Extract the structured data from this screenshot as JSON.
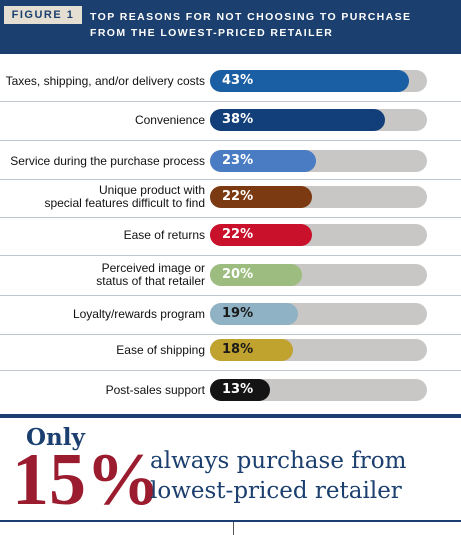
{
  "header": {
    "figure_label": "FIGURE 1",
    "title_line1": "TOP REASONS FOR NOT CHOOSING TO PURCHASE",
    "title_line2": "FROM THE LOWEST-PRICED RETAILER"
  },
  "chart_data": {
    "type": "bar",
    "title": "TOP REASONS FOR NOT CHOOSING TO PURCHASE FROM THE LOWEST-PRICED RETAILER",
    "categories": [
      "Taxes, shipping, and/or delivery costs",
      "Convenience",
      "Service during the purchase process",
      "Unique product with special features difficult to find",
      "Ease of returns",
      "Perceived image or status of that retailer",
      "Loyalty/rewards program",
      "Ease of shipping",
      "Post-sales support"
    ],
    "category_lines": [
      [
        "Taxes, shipping, and/or delivery costs"
      ],
      [
        "Convenience"
      ],
      [
        "Service during the purchase process"
      ],
      [
        "Unique product with",
        "special features difficult to find"
      ],
      [
        "Ease of returns"
      ],
      [
        "Perceived image or",
        "status of that retailer"
      ],
      [
        "Loyalty/rewards program"
      ],
      [
        "Ease of shipping"
      ],
      [
        "Post-sales support"
      ]
    ],
    "values": [
      43,
      38,
      23,
      22,
      22,
      20,
      19,
      18,
      13
    ],
    "value_labels": [
      "43%",
      "38%",
      "23%",
      "22%",
      "22%",
      "20%",
      "19%",
      "18%",
      "13%"
    ],
    "colors": [
      "#1a5ea3",
      "#123f7a",
      "#4a7cc4",
      "#7b3a12",
      "#c9112b",
      "#9dbd80",
      "#8fb2c4",
      "#c0a22e",
      "#141414"
    ],
    "dark_label_indices": [
      6,
      7
    ],
    "xlim": [
      0,
      47
    ],
    "grid": false
  },
  "callout": {
    "only": "Only",
    "percent": "15%",
    "line1": "always purchase from",
    "line2": "lowest-priced retailer"
  }
}
